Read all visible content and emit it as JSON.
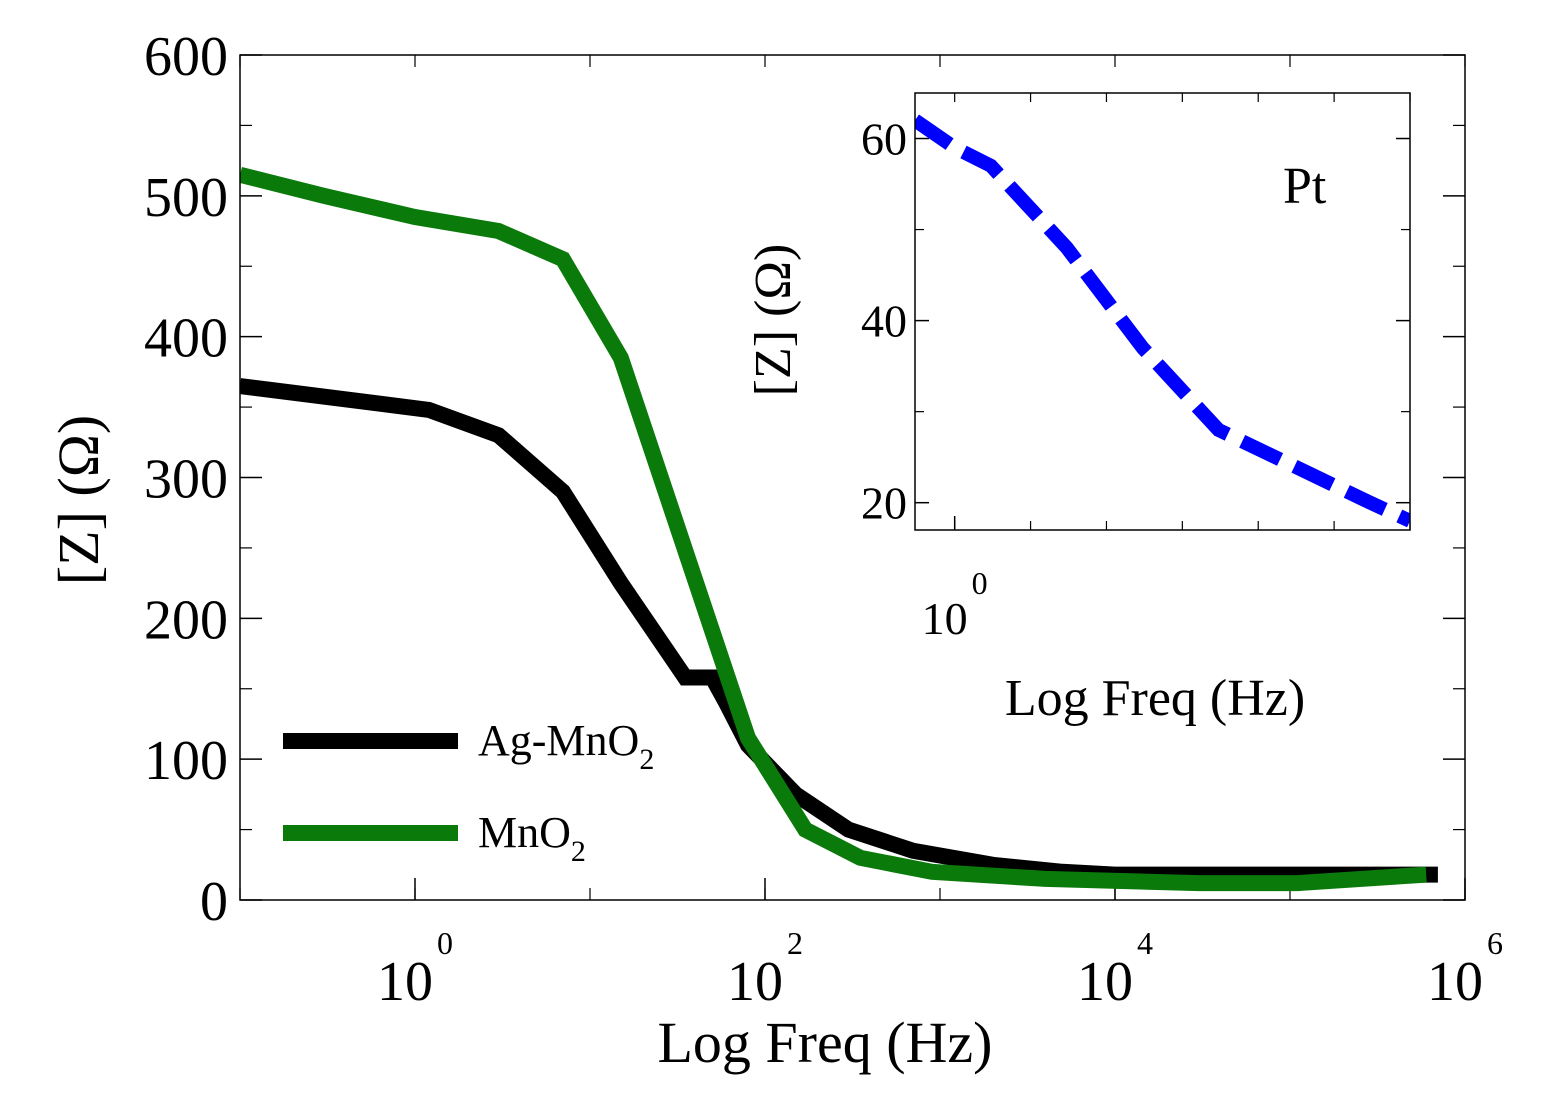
{
  "chart_data": [
    {
      "type": "line",
      "title": "",
      "xlabel": "Log Freq (Hz)",
      "ylabel": "[Z] (Ω)",
      "x_scale": "log",
      "xlim": [
        0.1,
        1000000
      ],
      "ylim": [
        0,
        600
      ],
      "y_ticks": [
        "0",
        "100",
        "200",
        "300",
        "400",
        "500",
        "600"
      ],
      "x_ticks": [
        {
          "base": "10",
          "exp": "0"
        },
        {
          "base": "10",
          "exp": "2"
        },
        {
          "base": "10",
          "exp": "4"
        },
        {
          "base": "10",
          "exp": "6"
        }
      ],
      "legend": {
        "position": "bottom-left",
        "entries": [
          {
            "label": "Ag-MnO",
            "subscript": "2",
            "color": "#000000"
          },
          {
            "label": "MnO",
            "subscript": "2",
            "color": "#0a7a0a"
          }
        ]
      },
      "series": [
        {
          "name": "Ag-MnO2",
          "color": "#000000",
          "x": [
            0.1,
            1.2,
            3,
            7,
            15,
            35,
            50,
            60,
            80,
            150,
            300,
            700,
            2000,
            5000,
            10000,
            30000,
            100000,
            300000,
            700000
          ],
          "y": [
            365,
            348,
            330,
            290,
            225,
            158,
            158,
            140,
            110,
            75,
            50,
            35,
            25,
            20,
            18,
            18,
            18,
            18,
            18
          ]
        },
        {
          "name": "MnO2",
          "color": "#0a7a0a",
          "x": [
            0.1,
            0.3,
            1,
            3,
            7,
            15,
            80,
            170,
            350,
            900,
            4000,
            30000,
            110000,
            600000
          ],
          "y": [
            515,
            500,
            485,
            475,
            455,
            385,
            115,
            50,
            30,
            20,
            15,
            12,
            12,
            18
          ]
        }
      ]
    },
    {
      "type": "line",
      "title": "",
      "annotation": "Pt",
      "xlabel": "Log Freq (Hz)",
      "ylabel": "[Z] (Ω)",
      "x_scale": "log",
      "xlim": [
        0.3,
        1000000
      ],
      "ylim": [
        17,
        65
      ],
      "y_ticks": [
        "20",
        "40",
        "60"
      ],
      "x_ticks": [
        {
          "base": "10",
          "exp": "0"
        }
      ],
      "series": [
        {
          "name": "Pt",
          "color": "#0000ff",
          "line_style": "dashed",
          "x": [
            0.3,
            1,
            3,
            30,
            300,
            3000,
            30000,
            300000,
            1000000
          ],
          "y": [
            62,
            59,
            57,
            48,
            37,
            28,
            24,
            20,
            18
          ]
        }
      ]
    }
  ]
}
